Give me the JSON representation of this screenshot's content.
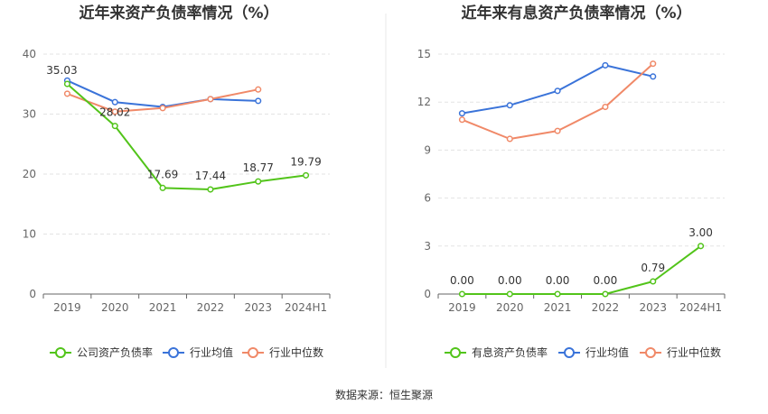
{
  "source_note": "数据来源：恒生聚源",
  "chart_data": [
    {
      "type": "line",
      "title": "近年来资产负债率情况（%）",
      "categories": [
        "2019",
        "2020",
        "2021",
        "2022",
        "2023",
        "2024H1"
      ],
      "ylim": [
        0,
        40
      ],
      "yticks": [
        0,
        10,
        20,
        30,
        40
      ],
      "grid": "horizontal dashed",
      "legend_position": "bottom",
      "series": [
        {
          "name": "公司资产负债率",
          "color": "#52c41a",
          "values": [
            35.03,
            28.02,
            17.69,
            17.44,
            18.77,
            19.79
          ],
          "labels": [
            "35.03",
            "28.02",
            "17.69",
            "17.44",
            "18.77",
            "19.79"
          ]
        },
        {
          "name": "行业均值",
          "color": "#3a73d9",
          "values": [
            35.6,
            32.0,
            31.2,
            32.5,
            32.2,
            null
          ],
          "labels": []
        },
        {
          "name": "行业中位数",
          "color": "#f08968",
          "values": [
            33.4,
            30.4,
            31.0,
            32.5,
            34.1,
            null
          ],
          "labels": []
        }
      ]
    },
    {
      "type": "line",
      "title": "近年来有息资产负债率情况（%）",
      "categories": [
        "2019",
        "2020",
        "2021",
        "2022",
        "2023",
        "2024H1"
      ],
      "ylim": [
        0,
        15
      ],
      "yticks": [
        0,
        3,
        6,
        9,
        12,
        15
      ],
      "grid": "horizontal dashed",
      "legend_position": "bottom",
      "series": [
        {
          "name": "有息资产负债率",
          "color": "#52c41a",
          "values": [
            0.0,
            0.0,
            0.0,
            0.0,
            0.79,
            3.0
          ],
          "labels": [
            "0.00",
            "0.00",
            "0.00",
            "0.00",
            "0.79",
            "3.00"
          ]
        },
        {
          "name": "行业均值",
          "color": "#3a73d9",
          "values": [
            11.3,
            11.8,
            12.7,
            14.3,
            13.6,
            null
          ],
          "labels": []
        },
        {
          "name": "行业中位数",
          "color": "#f08968",
          "values": [
            10.9,
            9.7,
            10.2,
            11.7,
            14.4,
            null
          ],
          "labels": []
        }
      ]
    }
  ]
}
